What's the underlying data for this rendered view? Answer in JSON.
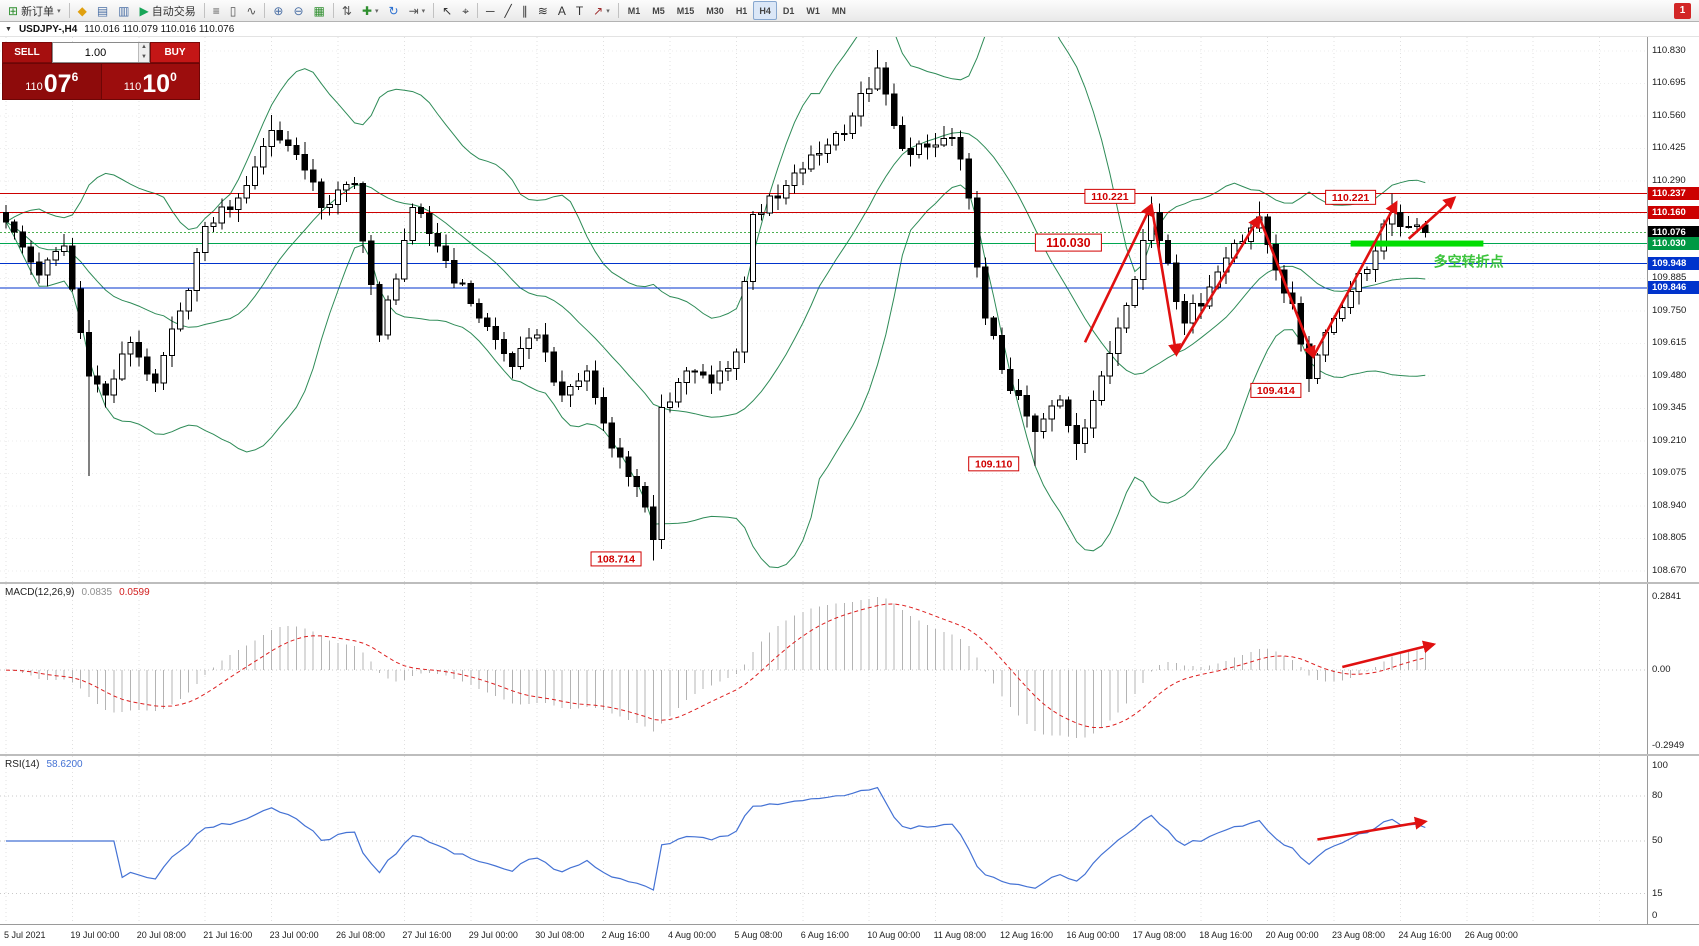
{
  "toolbar": {
    "items": [
      {
        "type": "btn",
        "name": "new-order-button",
        "glyph": "⊞",
        "glyph_color": "#2f8f2f",
        "label": "新订单",
        "caret": true
      },
      {
        "type": "sep"
      },
      {
        "type": "btn",
        "name": "metaeditor-button",
        "glyph": "◆",
        "glyph_color": "#e0a010"
      },
      {
        "type": "btn",
        "name": "market-watch-button",
        "glyph": "▤",
        "glyph_color": "#4a6fa5"
      },
      {
        "type": "btn",
        "name": "data-window-button",
        "glyph": "▥",
        "glyph_color": "#4a6fa5"
      },
      {
        "type": "btn",
        "name": "autotrading-button",
        "glyph": "▶",
        "glyph_color": "#18a558",
        "label": "自动交易"
      },
      {
        "type": "sep"
      },
      {
        "type": "btn",
        "name": "bar-chart-button",
        "glyph": "≡",
        "glyph_color": "#555555"
      },
      {
        "type": "btn",
        "name": "candlestick-chart-button",
        "glyph": "▯",
        "glyph_color": "#555555"
      },
      {
        "type": "btn",
        "name": "line-chart-button",
        "glyph": "∿",
        "glyph_color": "#555555"
      },
      {
        "type": "sep"
      },
      {
        "type": "btn",
        "name": "zoom-in-button",
        "glyph": "⊕",
        "glyph_color": "#4a6fa5"
      },
      {
        "type": "btn",
        "name": "zoom-out-button",
        "glyph": "⊖",
        "glyph_color": "#4a6fa5"
      },
      {
        "type": "btn",
        "name": "tile-windows-button",
        "glyph": "▦",
        "glyph_color": "#2f8f2f"
      },
      {
        "type": "sep"
      },
      {
        "type": "btn",
        "name": "indicator-list-button",
        "glyph": "⇅",
        "glyph_color": "#555555"
      },
      {
        "type": "btn",
        "name": "add-indicator-button",
        "glyph": "✚",
        "glyph_color": "#2f8f2f",
        "caret": true
      },
      {
        "type": "btn",
        "name": "auto-scroll-button",
        "glyph": "↻",
        "glyph_color": "#2a6fd0"
      },
      {
        "type": "btn",
        "name": "chart-shift-button",
        "glyph": "⇥",
        "glyph_color": "#555555",
        "caret": true
      },
      {
        "type": "sep"
      },
      {
        "type": "btn",
        "name": "cursor-button",
        "glyph": "↖",
        "glyph_color": "#333333"
      },
      {
        "type": "btn",
        "name": "crosshair-button",
        "glyph": "⌖",
        "glyph_color": "#333333"
      },
      {
        "type": "sep"
      },
      {
        "type": "btn",
        "name": "horizontal-line-button",
        "glyph": "─",
        "glyph_color": "#333333"
      },
      {
        "type": "btn",
        "name": "trendline-button",
        "glyph": "╱",
        "glyph_color": "#333333"
      },
      {
        "type": "btn",
        "name": "channel-button",
        "glyph": "∥",
        "glyph_color": "#333333"
      },
      {
        "type": "btn",
        "name": "fibonacci-button",
        "glyph": "≋",
        "glyph_color": "#333333"
      },
      {
        "type": "btn",
        "name": "text-button",
        "glyph": "A",
        "glyph_color": "#333333"
      },
      {
        "type": "btn",
        "name": "text-label-button",
        "glyph": "T",
        "glyph_color": "#333333"
      },
      {
        "type": "btn",
        "name": "arrows-tool-button",
        "glyph": "↗",
        "glyph_color": "#a03030",
        "caret": true
      },
      {
        "type": "sep"
      },
      {
        "type": "tf",
        "name": "timeframe-m1",
        "label": "M1"
      },
      {
        "type": "tf",
        "name": "timeframe-m5",
        "label": "M5"
      },
      {
        "type": "tf",
        "name": "timeframe-m15",
        "label": "M15"
      },
      {
        "type": "tf",
        "name": "timeframe-m30",
        "label": "M30"
      },
      {
        "type": "tf",
        "name": "timeframe-h1",
        "label": "H1"
      },
      {
        "type": "tf",
        "name": "timeframe-h4",
        "label": "H4",
        "active": true
      },
      {
        "type": "tf",
        "name": "timeframe-d1",
        "label": "D1"
      },
      {
        "type": "tf",
        "name": "timeframe-w1",
        "label": "W1"
      },
      {
        "type": "tf",
        "name": "timeframe-mn",
        "label": "MN"
      },
      {
        "type": "badge",
        "name": "notification-badge",
        "label": "1"
      }
    ]
  },
  "chart_header": {
    "collapse_icon": "▼",
    "symbol_period": "USDJPY-,H4",
    "ohlc": "110.016 110.079 110.016 110.076"
  },
  "trade_panel": {
    "sell_label": "SELL",
    "buy_label": "BUY",
    "volume": "1.00",
    "sell_prefix": "110",
    "sell_big": "07",
    "sell_sup": "6",
    "buy_prefix": "110",
    "buy_big": "10",
    "buy_sup": "0"
  },
  "indicators": {
    "macd": {
      "name": "MACD(12,26,9)",
      "value": "0.0835",
      "signal": "0.0599"
    },
    "rsi": {
      "name": "RSI(14)",
      "value": "58.6200"
    }
  },
  "chart_data": {
    "type": "candlestick",
    "symbol": "USDJPY-",
    "timeframe": "H4",
    "title": "USDJPY-,H4",
    "current": {
      "open": 110.016,
      "high": 110.079,
      "low": 110.016,
      "close": 110.076
    },
    "colors": {
      "bull": "#ffffff",
      "bear": "#000000",
      "outline": "#000000",
      "bollinger": "#2e8b57",
      "grid": "#e0e0e0",
      "arrow": "#e01010",
      "macd_hist": "#b4b4b4",
      "macd_signal": "#dd2020",
      "rsi_line": "#4472d4",
      "highlight": "#00dd00",
      "note": "#3cc43c",
      "label": "#d00000"
    },
    "price_axis": {
      "min": 108.67,
      "max": 110.83,
      "ticks": [
        110.83,
        110.695,
        110.56,
        110.425,
        110.29,
        110.155,
        110.02,
        109.885,
        109.75,
        109.615,
        109.48,
        109.345,
        109.21,
        109.075,
        108.94,
        108.805,
        108.67
      ]
    },
    "levels": [
      {
        "price": 110.237,
        "color": "#cc0000",
        "axis_bg": "#cc0000"
      },
      {
        "price": 110.16,
        "color": "#cc0000",
        "axis_bg": "#cc0000"
      },
      {
        "price": 110.076,
        "color": "#4caf50",
        "style": "dotted",
        "axis_bg": "#000000"
      },
      {
        "price": 110.03,
        "color": "#00a651",
        "axis_bg": "#009944"
      },
      {
        "price": 109.948,
        "color": "#0033cc",
        "axis_bg": "#0033cc"
      },
      {
        "price": 109.846,
        "color": "#0033cc",
        "axis_bg": "#0033cc"
      }
    ],
    "bollinger": {
      "period": 20,
      "deviation": 2
    },
    "candles": {
      "count": 172,
      "anchors": [
        [
          0,
          110.12
        ],
        [
          4,
          109.9
        ],
        [
          7,
          110.02
        ],
        [
          10,
          109.48
        ],
        [
          12,
          109.4
        ],
        [
          15,
          109.62
        ],
        [
          18,
          109.45
        ],
        [
          21,
          109.75
        ],
        [
          24,
          110.1
        ],
        [
          28,
          110.22
        ],
        [
          32,
          110.5
        ],
        [
          35,
          110.4
        ],
        [
          38,
          110.18
        ],
        [
          42,
          110.28
        ],
        [
          45,
          109.65
        ],
        [
          49,
          110.18
        ],
        [
          52,
          110.02
        ],
        [
          56,
          109.78
        ],
        [
          61,
          109.52
        ],
        [
          64,
          109.65
        ],
        [
          67,
          109.4
        ],
        [
          70,
          109.5
        ],
        [
          73,
          109.18
        ],
        [
          76,
          109.02
        ],
        [
          78,
          108.8
        ],
        [
          79,
          109.35
        ],
        [
          82,
          109.5
        ],
        [
          85,
          109.45
        ],
        [
          88,
          109.58
        ],
        [
          90,
          110.15
        ],
        [
          93,
          110.22
        ],
        [
          96,
          110.34
        ],
        [
          99,
          110.44
        ],
        [
          102,
          110.56
        ],
        [
          105,
          110.76
        ],
        [
          107,
          110.52
        ],
        [
          109,
          110.4
        ],
        [
          112,
          110.44
        ],
        [
          114,
          110.47
        ],
        [
          116,
          110.22
        ],
        [
          118,
          109.72
        ],
        [
          121,
          109.42
        ],
        [
          124,
          109.25
        ],
        [
          127,
          109.38
        ],
        [
          129,
          109.2
        ],
        [
          132,
          109.48
        ],
        [
          134,
          109.68
        ],
        [
          138,
          110.16
        ],
        [
          140,
          109.95
        ],
        [
          142,
          109.7
        ],
        [
          145,
          109.85
        ],
        [
          148,
          110.03
        ],
        [
          151,
          110.14
        ],
        [
          153,
          109.92
        ],
        [
          155,
          109.78
        ],
        [
          157,
          109.47
        ],
        [
          159,
          109.66
        ],
        [
          162,
          109.83
        ],
        [
          165,
          110.0
        ],
        [
          167,
          110.16
        ],
        [
          169,
          110.1
        ],
        [
          171,
          110.076
        ]
      ],
      "overrides": {
        "10": {
          "low": 109.065
        },
        "32": {
          "high": 110.565
        },
        "78": {
          "low": 108.714
        },
        "105": {
          "high": 110.835
        },
        "124": {
          "low": 109.105
        },
        "129": {
          "low": 109.13
        },
        "138": {
          "high": 110.225
        },
        "151": {
          "high": 110.205
        },
        "157": {
          "low": 109.414
        },
        "167": {
          "high": 110.237
        }
      }
    },
    "label_every": 8,
    "time_labels": [
      "5 Jul 2021",
      "19 Jul 00:00",
      "20 Jul 08:00",
      "21 Jul 16:00",
      "23 Jul 00:00",
      "26 Jul 08:00",
      "27 Jul 16:00",
      "29 Jul 00:00",
      "30 Jul 08:00",
      "2 Aug 16:00",
      "4 Aug 00:00",
      "5 Aug 08:00",
      "6 Aug 16:00",
      "10 Aug 00:00",
      "11 Aug 08:00",
      "12 Aug 16:00",
      "16 Aug 00:00",
      "17 Aug 08:00",
      "18 Aug 16:00",
      "20 Aug 00:00",
      "23 Aug 08:00",
      "24 Aug 16:00",
      "26 Aug 00:00"
    ],
    "price_labels": [
      {
        "text": "110.221",
        "i": 133,
        "price": 110.226
      },
      {
        "text": "110.221",
        "i": 162,
        "price": 110.222
      },
      {
        "text": "110.030",
        "i": 128,
        "price": 110.034,
        "big": true
      },
      {
        "text": "109.414",
        "i": 153,
        "price": 109.42
      },
      {
        "text": "109.110",
        "i": 119,
        "price": 109.115
      },
      {
        "text": "108.714",
        "i": 73.5,
        "price": 108.72
      }
    ],
    "annotations": {
      "arrows": [
        [
          130,
          109.62,
          138,
          110.19
        ],
        [
          138,
          110.19,
          141,
          109.57
        ],
        [
          141,
          109.57,
          151,
          110.14
        ],
        [
          151,
          110.14,
          157.5,
          109.56
        ],
        [
          157.5,
          109.56,
          167.5,
          110.2
        ],
        [
          169,
          110.05,
          174.5,
          110.22
        ]
      ],
      "highlight_bar": {
        "i1": 162,
        "i2": 178,
        "price": 110.03
      },
      "note_text": {
        "text": "多空转折点",
        "i": 172,
        "price": 109.935
      }
    },
    "macd": {
      "params": [
        12,
        26,
        9
      ],
      "value": 0.0835,
      "signal_value": 0.0599,
      "axis_labels": [
        {
          "text": "0.2841",
          "v": 0.2841
        },
        {
          "text": "0.00",
          "v": 0
        },
        {
          "text": "-0.2949",
          "v": -0.2949
        }
      ],
      "axis_max": 0.2841,
      "axis_min": -0.2949,
      "arrow": [
        161,
        0.012,
        172,
        0.1
      ]
    },
    "rsi": {
      "period": 14,
      "value": 58.62,
      "axis_labels": [
        {
          "text": "100",
          "v": 100
        },
        {
          "text": "80",
          "v": 80
        },
        {
          "text": "50",
          "v": 50
        },
        {
          "text": "15",
          "v": 15
        },
        {
          "text": "0",
          "v": 0
        }
      ],
      "levels": [
        80,
        50,
        15
      ],
      "arrow": [
        158,
        51,
        171,
        63
      ]
    }
  }
}
